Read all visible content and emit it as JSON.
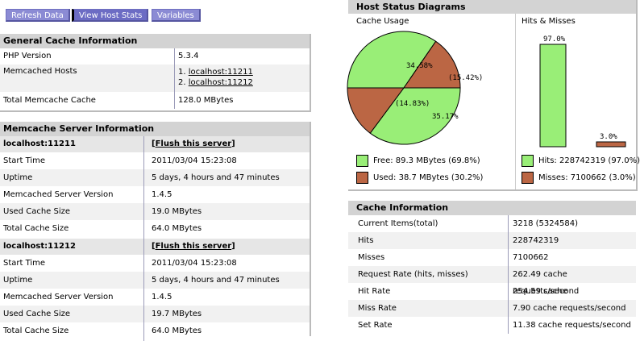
{
  "toolbar": {
    "refresh": "Refresh Data",
    "view_host_stats": "View Host Stats",
    "variables": "Variables"
  },
  "general": {
    "title": "General Cache Information",
    "php_version_label": "PHP Version",
    "php_version_value": "5.3.4",
    "memcached_hosts_label": "Memcached Hosts",
    "host1": "1. ",
    "host1_link": "localhost:11211",
    "host2": "2. ",
    "host2_link": "localhost:11212",
    "total_label": "Total Memcache Cache",
    "total_value": "128.0 MBytes"
  },
  "servers": {
    "title": "Memcache Server Information",
    "list": [
      {
        "name": "localhost:11211",
        "flush_prefix": "[",
        "flush": "Flush this server",
        "flush_suffix": "]",
        "rows": [
          {
            "label": "Start Time",
            "value": "2011/03/04 15:23:08"
          },
          {
            "label": "Uptime",
            "value": "5 days, 4 hours and 47 minutes"
          },
          {
            "label": "Memcached Server Version",
            "value": "1.4.5"
          },
          {
            "label": "Used Cache Size",
            "value": "19.0 MBytes"
          },
          {
            "label": "Total Cache Size",
            "value": "64.0 MBytes"
          }
        ]
      },
      {
        "name": "localhost:11212",
        "flush_prefix": "[",
        "flush": "Flush this server",
        "flush_suffix": "]",
        "rows": [
          {
            "label": "Start Time",
            "value": "2011/03/04 15:23:08"
          },
          {
            "label": "Uptime",
            "value": "5 days, 4 hours and 47 minutes"
          },
          {
            "label": "Memcached Server Version",
            "value": "1.4.5"
          },
          {
            "label": "Used Cache Size",
            "value": "19.7 MBytes"
          },
          {
            "label": "Total Cache Size",
            "value": "64.0 MBytes"
          }
        ]
      }
    ]
  },
  "diagrams": {
    "title": "Host Status Diagrams",
    "cache_usage_label": "Cache Usage",
    "hits_misses_label": "Hits & Misses",
    "pie_labels": [
      "34.58%",
      "(15.42%)",
      "(14.83%)",
      "35.17%"
    ],
    "pie_fractions": [
      0.3458,
      0.1542,
      0.3517,
      0.1483
    ],
    "bar_labels": [
      "97.0%",
      "3.0%"
    ],
    "bar_values": [
      0.97,
      0.03
    ],
    "free_label": "Free: 89.3 MBytes (69.8%)",
    "used_label": "Used: 38.7 MBytes (30.2%)",
    "hits_label": "Hits: 228742319 (97.0%)",
    "misses_label": "Misses: 7100662 (3.0%)",
    "colors": {
      "free": "#99ee77",
      "used": "#bb6644"
    }
  },
  "cacheinfo": {
    "title": "Cache Information",
    "rows": [
      {
        "label": "Current Items(total)",
        "value": "3218 (5324584)"
      },
      {
        "label": "Hits",
        "value": "228742319"
      },
      {
        "label": "Misses",
        "value": "7100662"
      },
      {
        "label": "Request Rate (hits, misses)",
        "value": "262.49 cache requests/second"
      },
      {
        "label": "Hit Rate",
        "value": "254.59 cache requests/second"
      },
      {
        "label": "Miss Rate",
        "value": "7.90 cache requests/second"
      },
      {
        "label": "Set Rate",
        "value": "11.38 cache requests/second"
      }
    ]
  }
}
